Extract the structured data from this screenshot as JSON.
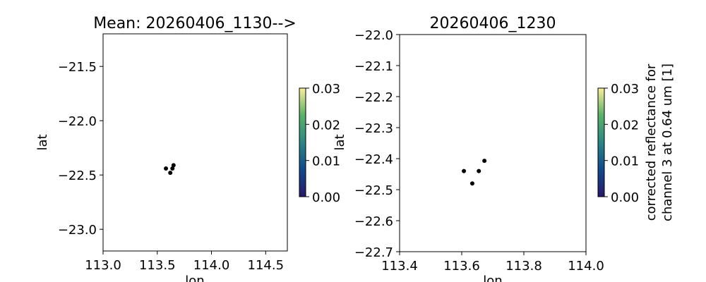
{
  "chart_data": [
    {
      "type": "scatter",
      "title": "Mean: 20260406_1130-->",
      "xlabel": "lon",
      "ylabel": "lat",
      "xlim": [
        113.0,
        114.7
      ],
      "ylim": [
        -23.2,
        -21.2
      ],
      "xticks": [
        113.0,
        113.5,
        114.0,
        114.5
      ],
      "yticks": [
        -21.5,
        -22.0,
        -22.5,
        -23.0
      ],
      "x": [
        113.58,
        113.64,
        113.62,
        113.65
      ],
      "y": [
        -22.44,
        -22.44,
        -22.48,
        -22.41
      ],
      "point_color": "#000000",
      "grid": false,
      "colorbar": {
        "range": [
          0.0,
          0.03
        ],
        "ticks": [
          "0.00",
          "0.01",
          "0.02",
          "0.03"
        ],
        "label": "",
        "colormap": [
          "#29186b",
          "#0f4a8e",
          "#2a8585",
          "#58b266",
          "#fbee9a"
        ]
      }
    },
    {
      "type": "scatter",
      "title": "20260406_1230",
      "xlabel": "lon",
      "ylabel": "lat",
      "xlim": [
        113.4,
        114.0
      ],
      "ylim": [
        -22.7,
        -22.0
      ],
      "xticks": [
        113.4,
        113.6,
        113.8,
        114.0
      ],
      "yticks": [
        -22.0,
        -22.1,
        -22.2,
        -22.3,
        -22.4,
        -22.5,
        -22.6,
        -22.7
      ],
      "x": [
        113.607,
        113.655,
        113.634,
        113.673
      ],
      "y": [
        -22.44,
        -22.44,
        -22.48,
        -22.407
      ],
      "point_color": "#000000",
      "grid": false,
      "colorbar": {
        "range": [
          0.0,
          0.03
        ],
        "ticks": [
          "0.00",
          "0.01",
          "0.02",
          "0.03"
        ],
        "label_line1": "corrected reflectance for",
        "label_line2": "channel 3 at 0.64 um [1]",
        "colormap": [
          "#29186b",
          "#0f4a8e",
          "#2a8585",
          "#58b266",
          "#fbee9a"
        ]
      }
    }
  ]
}
